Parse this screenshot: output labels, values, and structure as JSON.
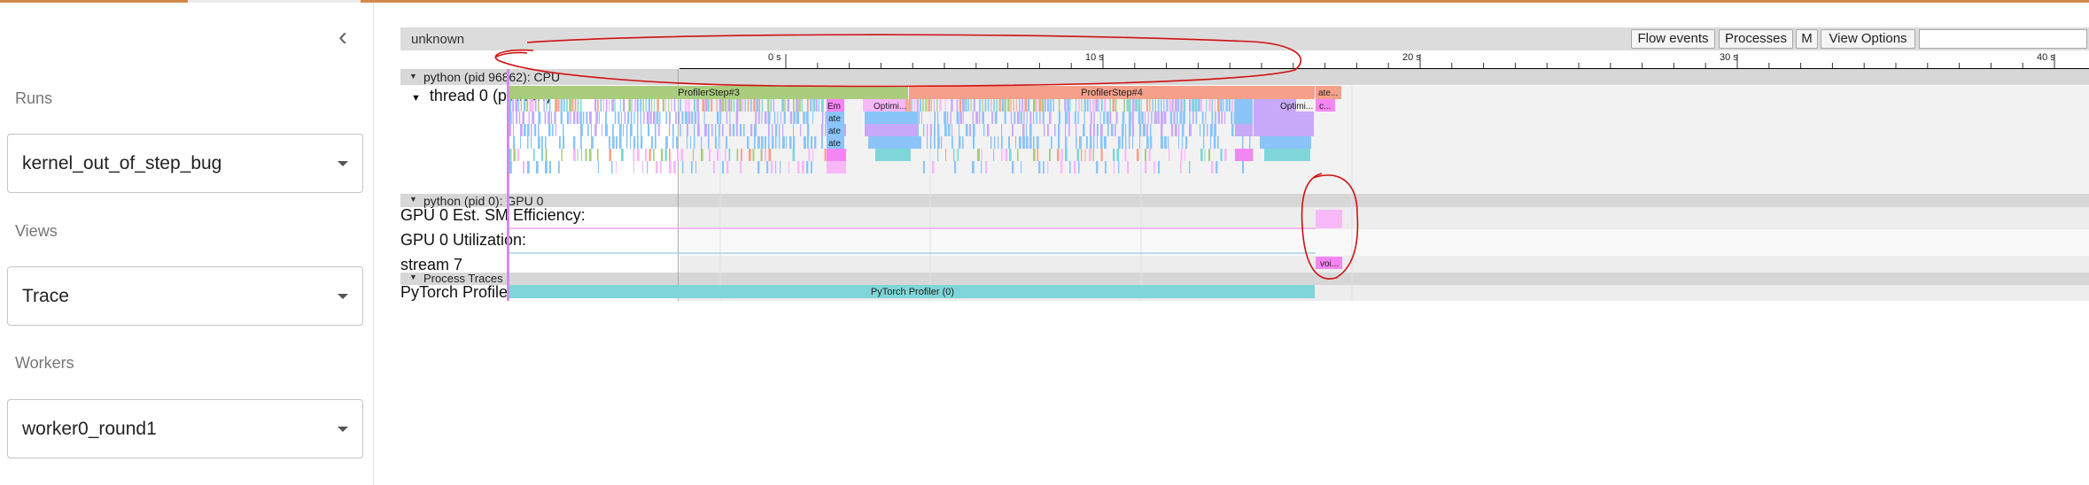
{
  "sidebar": {
    "collapse_icon": "chevron-left-icon",
    "runs_label": "Runs",
    "runs_value": "kernel_out_of_step_bug",
    "views_label": "Views",
    "views_value": "Trace",
    "workers_label": "Workers",
    "workers_value": "worker0_round1"
  },
  "trace": {
    "title": "unknown",
    "buttons": {
      "flow_events": "Flow events",
      "processes": "Processes",
      "m": "M",
      "view_options": "View Options"
    },
    "ruler": {
      "ticks": [
        "0 s",
        "10 s",
        "20 s",
        "30 s",
        "40 s"
      ]
    },
    "sections": {
      "cpu": "python (pid 96862): CPU",
      "gpu": "python (pid 0): GPU 0",
      "process_traces": "Process Traces"
    },
    "lanes": {
      "thread": "thread 0 (python)",
      "sm_efficiency": "GPU 0 Est. SM Efficiency:",
      "utilization": "GPU 0 Utilization:",
      "stream": "stream 7",
      "pytorch_profiler": "PyTorch Profiler"
    },
    "slices": {
      "step3": "ProfilerStep#3",
      "step4": "ProfilerStep#4",
      "step5_trunc": "ate...",
      "em": "Em",
      "optimi1": "Optimi...",
      "optimi2": "Optimi...",
      "c_trunc": "c...",
      "ate1": "ate",
      "ate2": "ate",
      "ate3": "ate",
      "kernel": "voi...",
      "profiler": "PyTorch Profiler (0)"
    },
    "colors": {
      "step3": "#a9cc7d",
      "step4": "#f6a08a",
      "magenta": "#f486f4",
      "lightpink": "#f8b8f8",
      "violet": "#c8a8f8",
      "blue": "#8ac4f8",
      "teal": "#7fd6d8",
      "annotation": "#d01010"
    }
  }
}
